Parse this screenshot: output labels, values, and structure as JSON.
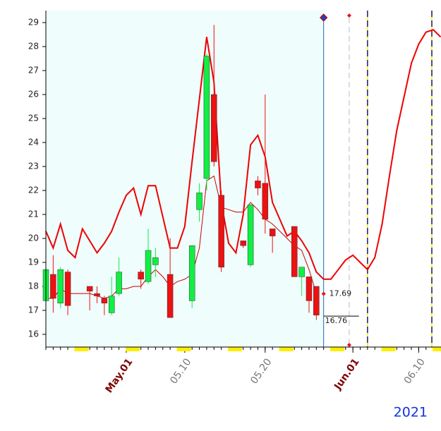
{
  "chart_data": {
    "type": "candlestick",
    "categories": [
      null,
      null,
      null,
      null,
      null,
      null,
      null,
      null,
      null,
      null,
      null,
      "May.01",
      null,
      null,
      null,
      null,
      null,
      null,
      null,
      "05.10",
      null,
      null,
      null,
      null,
      null,
      null,
      null,
      null,
      null,
      null,
      "05.20",
      null,
      null,
      null,
      null,
      null,
      null,
      null,
      null,
      null,
      null,
      null,
      "Jun.01",
      null,
      null,
      null,
      null,
      null,
      null,
      null,
      null,
      "06.10",
      null,
      null,
      null
    ],
    "open": [
      17.4,
      18.5,
      17.3,
      18.6,
      null,
      null,
      18.0,
      17.7,
      17.5,
      16.9,
      17.7,
      null,
      null,
      18.6,
      18.2,
      18.9,
      null,
      18.5,
      null,
      null,
      17.4,
      21.2,
      22.5,
      26.0,
      21.8,
      null,
      null,
      19.9,
      18.9,
      22.4,
      22.3,
      20.4,
      null,
      null,
      20.5,
      18.4,
      18.4,
      18.0,
      null,
      null,
      null,
      null,
      null,
      null,
      null,
      null,
      null,
      null,
      null,
      null,
      null,
      null,
      null,
      null,
      null
    ],
    "high": [
      18.7,
      19.3,
      18.8,
      18.7,
      null,
      null,
      18.0,
      18.0,
      17.6,
      18.4,
      19.2,
      null,
      null,
      18.7,
      20.4,
      19.6,
      null,
      20.0,
      null,
      null,
      19.7,
      22.3,
      27.7,
      28.9,
      22.0,
      null,
      null,
      19.9,
      21.4,
      22.6,
      26.0,
      20.4,
      null,
      null,
      20.5,
      18.8,
      18.4,
      18.0,
      null,
      null,
      null,
      null,
      null,
      null,
      null,
      null,
      null,
      null,
      null,
      null,
      null,
      null,
      null,
      null,
      null
    ],
    "low": [
      17.4,
      16.9,
      17.1,
      16.8,
      null,
      null,
      17.0,
      17.3,
      16.8,
      16.8,
      17.6,
      null,
      null,
      17.9,
      18.1,
      18.4,
      null,
      16.7,
      null,
      null,
      17.1,
      20.7,
      22.0,
      23.0,
      18.6,
      null,
      null,
      19.6,
      18.8,
      21.8,
      20.2,
      19.4,
      null,
      null,
      18.4,
      17.6,
      16.9,
      16.6,
      null,
      null,
      null,
      null,
      null,
      null,
      null,
      null,
      null,
      null,
      null,
      null,
      null,
      null,
      null,
      null,
      null
    ],
    "close": [
      18.7,
      17.5,
      18.7,
      17.2,
      null,
      null,
      17.8,
      17.6,
      17.3,
      17.6,
      18.6,
      null,
      null,
      18.3,
      19.5,
      19.2,
      null,
      16.7,
      null,
      null,
      19.7,
      21.9,
      27.6,
      23.2,
      18.8,
      null,
      null,
      19.7,
      21.4,
      22.1,
      20.8,
      20.1,
      null,
      null,
      18.4,
      18.8,
      17.4,
      16.8,
      null,
      null,
      null,
      null,
      null,
      null,
      null,
      null,
      null,
      null,
      null,
      null,
      null,
      null,
      null,
      null,
      null
    ],
    "up_color": "#11ee44",
    "down_color": "#ee1111",
    "lines": [
      {
        "color": "#ee0000",
        "width": 2,
        "values": [
          20.3,
          19.6,
          20.6,
          19.5,
          19.2,
          20.4,
          19.9,
          19.4,
          19.8,
          20.3,
          21.1,
          21.8,
          22.1,
          21.0,
          22.2,
          22.2,
          20.9,
          19.6,
          19.6,
          20.5,
          23.2,
          25.8,
          28.4,
          26.5,
          21.5,
          19.8,
          19.4,
          21.0,
          23.9,
          24.3,
          23.4,
          21.5,
          20.8,
          20.1,
          20.3,
          19.9,
          19.4,
          18.6,
          18.3,
          18.3,
          18.7,
          19.1,
          19.3,
          19.0,
          18.7,
          19.2,
          20.6,
          22.6,
          24.5,
          25.9,
          27.3,
          28.1,
          28.6,
          28.7,
          28.4
        ]
      },
      {
        "color": "#cc0000",
        "width": 1,
        "values": [
          17.5,
          17.5,
          17.9,
          17.7,
          17.7,
          17.7,
          17.7,
          17.6,
          17.5,
          17.6,
          17.9,
          17.9,
          18.0,
          18.0,
          18.4,
          18.7,
          18.4,
          18.0,
          18.2,
          18.3,
          18.5,
          19.6,
          22.4,
          22.6,
          21.3,
          21.2,
          21.1,
          21.1,
          21.5,
          21.2,
          20.8,
          20.6,
          20.3,
          20.0,
          19.7,
          19.5,
          18.7,
          17.7,
          null,
          null,
          null,
          null,
          null,
          null,
          null,
          null,
          null,
          null,
          null,
          null,
          null,
          null,
          null,
          null,
          null
        ]
      }
    ],
    "annotations": [
      {
        "value": 17.69,
        "color": "#ee1111"
      },
      {
        "value": 16.76,
        "color": "#000000"
      }
    ],
    "ylim": [
      15.47,
      29.5
    ],
    "yticks": [
      16,
      17,
      18,
      19,
      20,
      21,
      22,
      23,
      24,
      25,
      26,
      27,
      28,
      29
    ],
    "year": "2021"
  }
}
